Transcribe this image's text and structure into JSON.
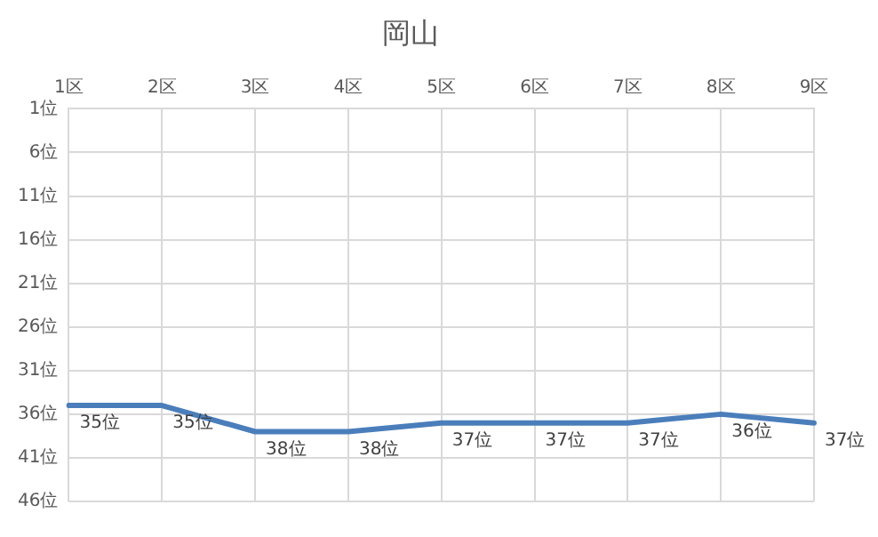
{
  "chart_data": {
    "type": "line",
    "title": "岡山",
    "categories": [
      "1区",
      "2区",
      "3区",
      "4区",
      "5区",
      "6区",
      "7区",
      "8区",
      "9区"
    ],
    "series": [
      {
        "color": "#4a7ebb",
        "values": [
          35,
          35,
          38,
          38,
          37,
          37,
          37,
          36,
          37
        ],
        "value_labels": [
          "35位",
          "35位",
          "38位",
          "38位",
          "37位",
          "37位",
          "37位",
          "36位",
          "37位"
        ]
      }
    ],
    "ylim": [
      46,
      1
    ],
    "yticks": [
      {
        "value": 1,
        "label": "1位"
      },
      {
        "value": 6,
        "label": "6位"
      },
      {
        "value": 11,
        "label": "11位"
      },
      {
        "value": 16,
        "label": "16位"
      },
      {
        "value": 21,
        "label": "21位"
      },
      {
        "value": 26,
        "label": "26位"
      },
      {
        "value": 31,
        "label": "31位"
      },
      {
        "value": 36,
        "label": "36位"
      },
      {
        "value": 41,
        "label": "41位"
      },
      {
        "value": 46,
        "label": "46位"
      }
    ],
    "grid": true,
    "legend": false,
    "marker": "none",
    "line_style": "solid"
  }
}
